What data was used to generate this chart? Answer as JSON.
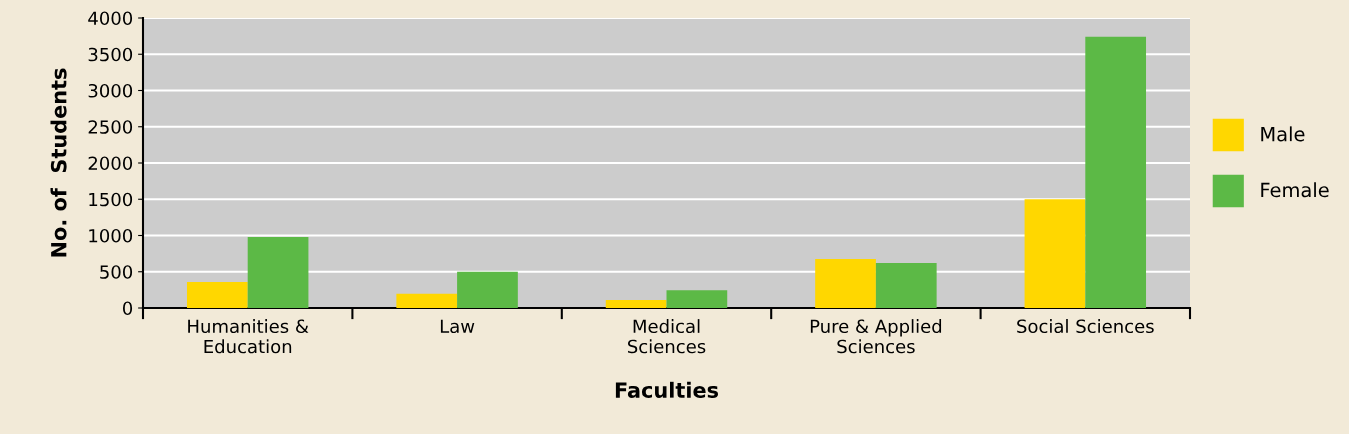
{
  "chart_data": {
    "type": "bar",
    "xlabel": "Faculties",
    "ylabel": "No. of  Students",
    "categories": [
      "Humanities &\nEducation",
      "Law",
      "Medical\nSciences",
      "Pure & Applied\nSciences",
      "Social Sciences"
    ],
    "series": [
      {
        "name": "Male",
        "color": "#ffd700",
        "values": [
          360,
          195,
          110,
          675,
          1500
        ]
      },
      {
        "name": "Female",
        "color": "#5cb946",
        "values": [
          980,
          500,
          245,
          620,
          3740
        ]
      }
    ],
    "ylim": [
      0,
      4000
    ],
    "yticks": [
      0,
      500,
      1000,
      1500,
      2000,
      2500,
      3000,
      3500,
      4000
    ],
    "grid": "y",
    "legend": "right"
  }
}
